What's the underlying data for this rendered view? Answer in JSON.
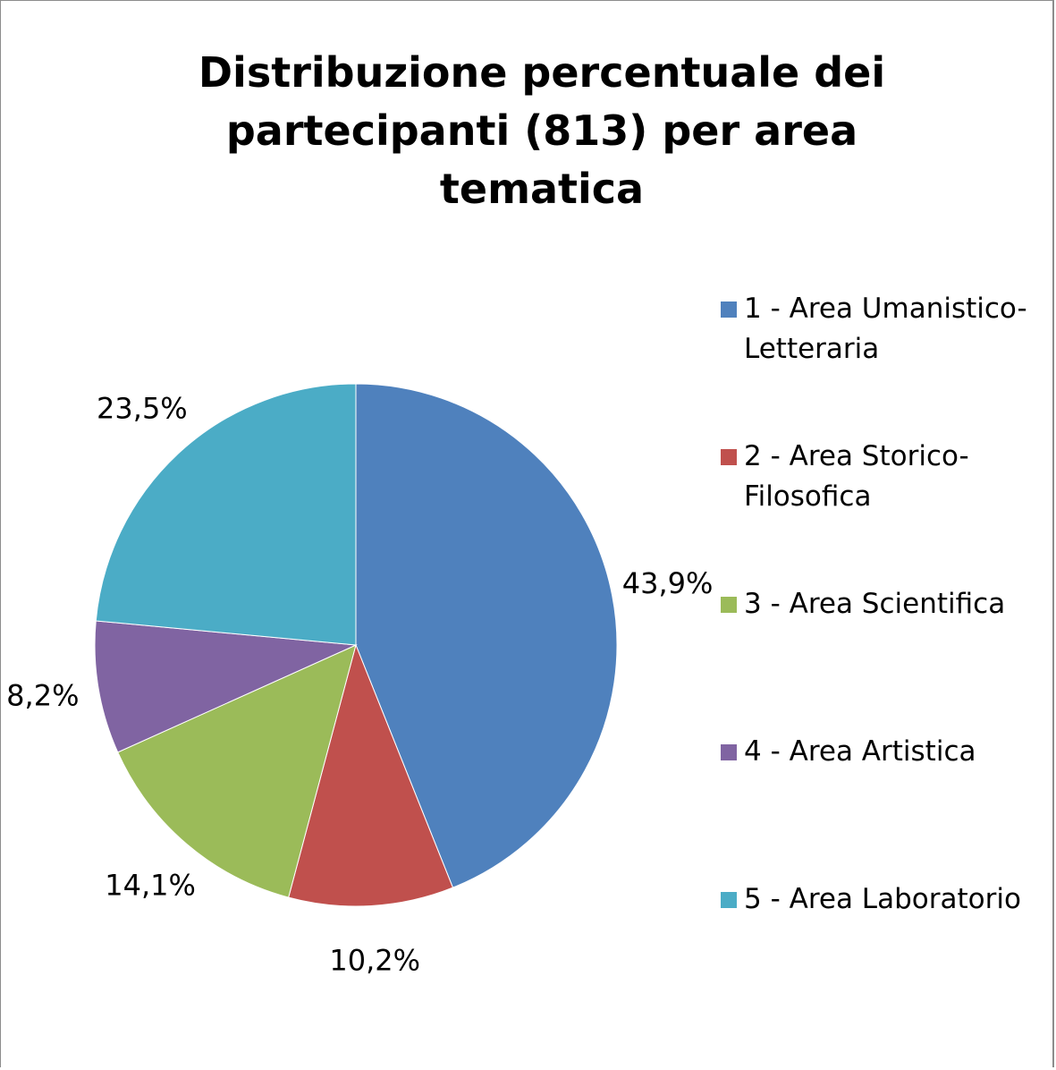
{
  "chart_data": {
    "type": "pie",
    "title": "Distribuzione percentuale dei partecipanti (813) per area tematica",
    "categories": [
      "1 - Area Umanistico-Letteraria",
      "2 - Area Storico-Filosofica",
      "3 - Area Scientifica",
      "4 - Area Artistica",
      "5 - Area Laboratorio"
    ],
    "values": [
      43.9,
      10.2,
      14.1,
      8.2,
      23.5
    ],
    "value_labels": [
      "43,9%",
      "10,2%",
      "14,1%",
      "8,2%",
      "23,5%"
    ],
    "colors": [
      "#4f81bd",
      "#c0504d",
      "#9bbb59",
      "#8064a2",
      "#4bacc6"
    ],
    "legend": "right"
  }
}
